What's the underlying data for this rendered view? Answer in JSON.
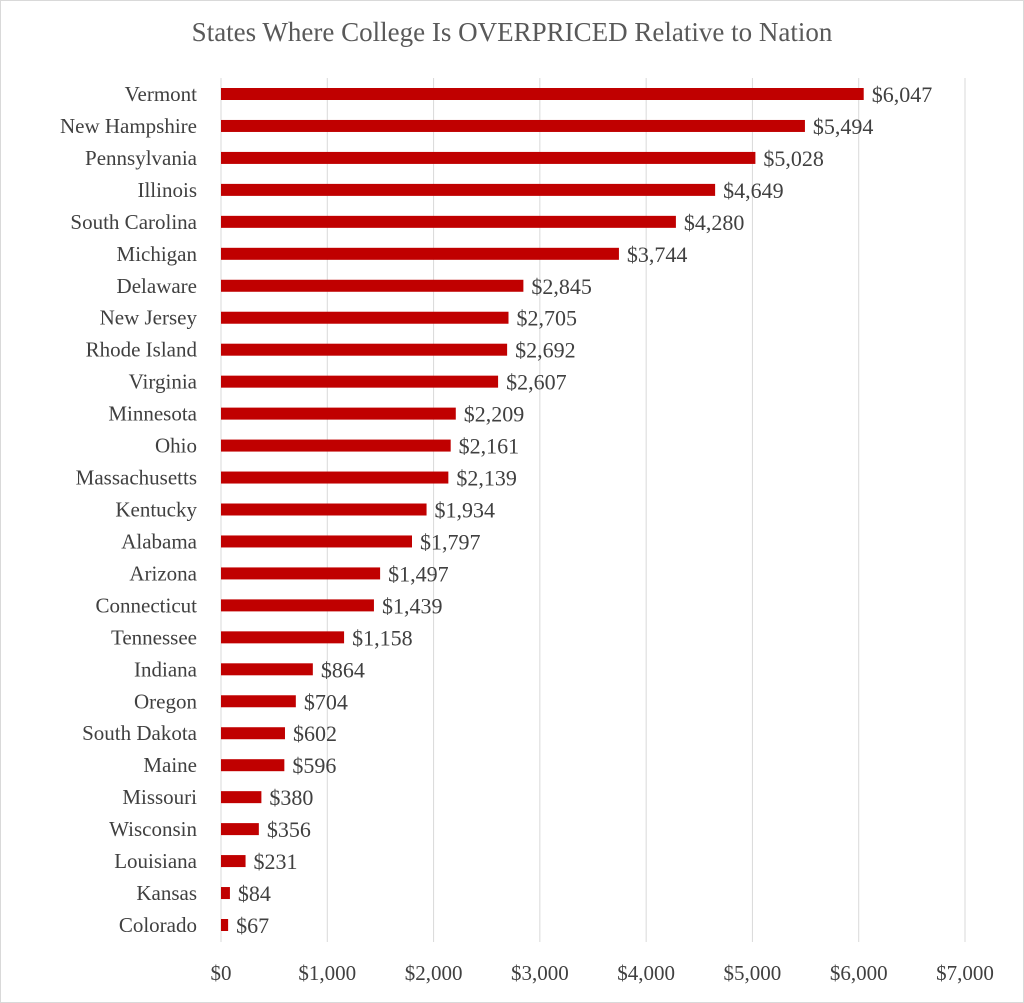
{
  "chart_data": {
    "type": "bar",
    "orientation": "horizontal",
    "title": "States Where College Is OVERPRICED Relative to Nation",
    "categories": [
      "Vermont",
      "New Hampshire",
      "Pennsylvania",
      "Illinois",
      "South Carolina",
      "Michigan",
      "Delaware",
      "New Jersey",
      "Rhode Island",
      "Virginia",
      "Minnesota",
      "Ohio",
      "Massachusetts",
      "Kentucky",
      "Alabama",
      "Arizona",
      "Connecticut",
      "Tennessee",
      "Indiana",
      "Oregon",
      "South Dakota",
      "Maine",
      "Missouri",
      "Wisconsin",
      "Louisiana",
      "Kansas",
      "Colorado"
    ],
    "values": [
      6047,
      5494,
      5028,
      4649,
      4280,
      3744,
      2845,
      2705,
      2692,
      2607,
      2209,
      2161,
      2139,
      1934,
      1797,
      1497,
      1439,
      1158,
      864,
      704,
      602,
      596,
      380,
      356,
      231,
      84,
      67
    ],
    "data_labels": [
      "$6,047",
      "$5,494",
      "$5,028",
      "$4,649",
      "$4,280",
      "$3,744",
      "$2,845",
      "$2,705",
      "$2,692",
      "$2,607",
      "$2,209",
      "$2,161",
      "$2,139",
      "$1,934",
      "$1,797",
      "$1,497",
      "$1,439",
      "$1,158",
      "$864",
      "$704",
      "$602",
      "$596",
      "$380",
      "$356",
      "$231",
      "$84",
      "$67"
    ],
    "xlim": [
      0,
      7000
    ],
    "x_ticks": [
      0,
      1000,
      2000,
      3000,
      4000,
      5000,
      6000,
      7000
    ],
    "x_tick_labels": [
      "$0",
      "$1,000",
      "$2,000",
      "$3,000",
      "$4,000",
      "$5,000",
      "$6,000",
      "$7,000"
    ],
    "xlabel": "",
    "ylabel": "",
    "grid": "vertical",
    "legend": "none",
    "bar_color": "#C00000"
  }
}
